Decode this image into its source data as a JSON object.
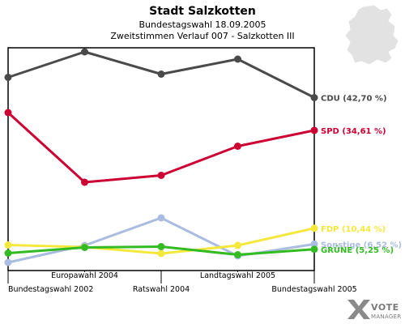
{
  "chart_data": {
    "type": "line",
    "title": "Stadt Salzkotten",
    "subtitle1": "Bundestagswahl 18.09.2005",
    "subtitle2": "Zweitstimmen Verlauf 007 - Salzkotten III",
    "categories": [
      "Bundestagswahl 2002",
      "Europawahl 2004",
      "Ratswahl 2004",
      "Landtagswahl 2005",
      "Bundestagswahl 2005"
    ],
    "ylim": [
      0,
      55
    ],
    "grid": false,
    "series": [
      {
        "name": "CDU",
        "label": "CDU (42,70 %)",
        "color": "#4a4a4a",
        "values": [
          47.7,
          54.0,
          48.5,
          52.2,
          42.7
        ]
      },
      {
        "name": "SPD",
        "label": "SPD (34,61 %)",
        "color": "#cc0033",
        "values": [
          39.0,
          21.8,
          23.5,
          30.7,
          34.61
        ]
      },
      {
        "name": "FDP",
        "label": "FDP (10,44 %)",
        "color": "#f5e83c",
        "values": [
          6.3,
          5.8,
          4.2,
          6.2,
          10.44
        ]
      },
      {
        "name": "Sonstige",
        "label": "Sonstige (6,52 %)",
        "color": "#aabde0",
        "values": [
          2.0,
          6.2,
          13.0,
          3.6,
          6.52
        ]
      },
      {
        "name": "GRÜNE",
        "label": "GRÜNE (5,25 %)",
        "color": "#33bb22",
        "values": [
          4.3,
          5.7,
          5.9,
          3.9,
          5.25
        ]
      }
    ]
  },
  "logo": {
    "line1": "VOTE",
    "line2": "MANAGER"
  }
}
